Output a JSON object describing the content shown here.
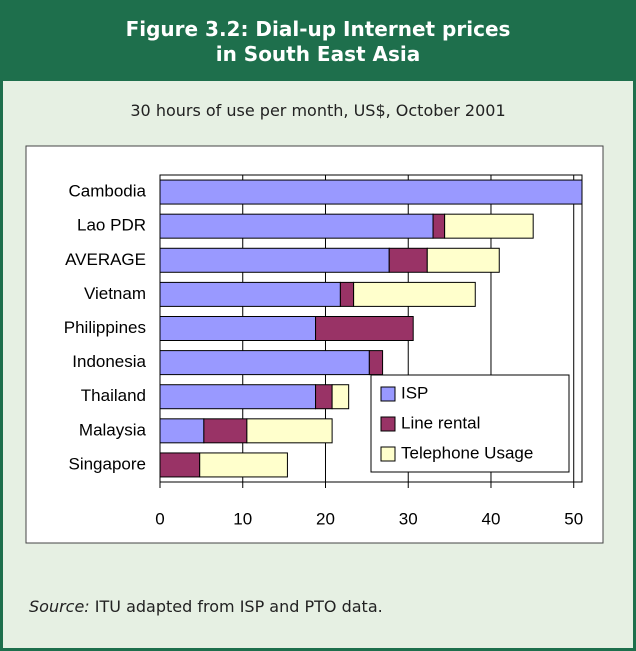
{
  "chart_data": {
    "type": "stacked-bar-horizontal",
    "title": [
      "Figure 3.2: Dial-up Internet prices",
      "in South East Asia"
    ],
    "subtitle": "30 hours of use per month, US$, October 2001",
    "categories": [
      "Cambodia",
      "Lao PDR",
      "AVERAGE",
      "Vietnam",
      "Philippines",
      "Indonesia",
      "Thailand",
      "Malaysia",
      "Singapore"
    ],
    "series": [
      {
        "name": "ISP",
        "color": "#9999ff",
        "values": [
          51,
          33,
          27.7,
          21.8,
          18.8,
          25.3,
          18.8,
          5.3,
          0
        ]
      },
      {
        "name": "Line rental",
        "color": "#993366",
        "values": [
          0,
          1.4,
          4.6,
          1.6,
          11.8,
          1.6,
          2.0,
          5.2,
          4.8
        ]
      },
      {
        "name": "Telephone Usage",
        "color": "#ffffcc",
        "values": [
          0,
          10.7,
          8.7,
          14.7,
          0,
          0,
          2.0,
          10.3,
          10.6
        ]
      }
    ],
    "xlim": [
      0,
      51
    ],
    "xticks": [
      0,
      10,
      20,
      30,
      40,
      50
    ],
    "grid": true,
    "legend": "lower right",
    "source_label": "Source:",
    "source_text": "ITU adapted from ISP and PTO data."
  }
}
